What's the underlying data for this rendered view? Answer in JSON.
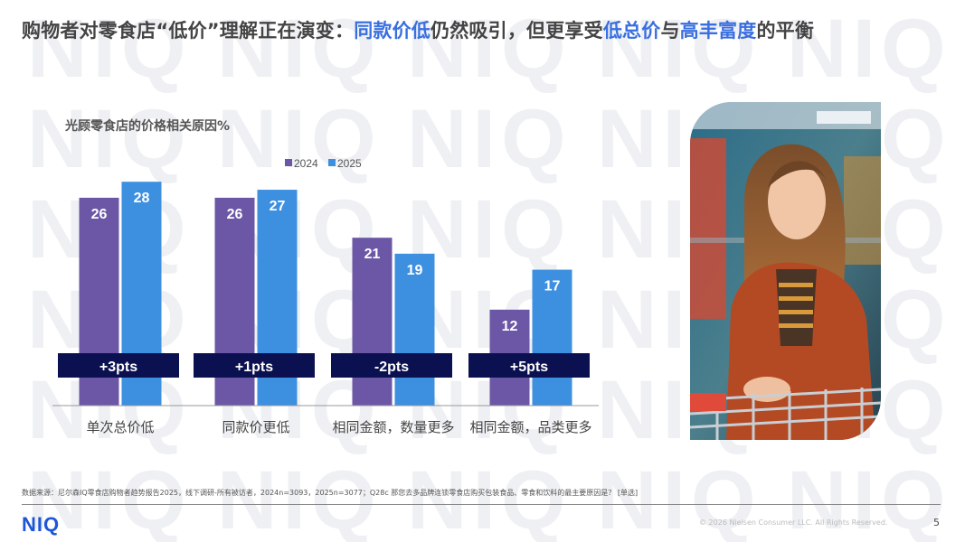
{
  "header": {
    "title_parts": [
      {
        "text": "购物者对零食店“低价”理解正在演变：",
        "hl": false
      },
      {
        "text": "同款价低",
        "hl": true
      },
      {
        "text": "仍然吸引，但更享受",
        "hl": false
      },
      {
        "text": "低总价",
        "hl": true
      },
      {
        "text": "与",
        "hl": false
      },
      {
        "text": "高丰富度",
        "hl": true
      },
      {
        "text": "的平衡",
        "hl": false
      }
    ]
  },
  "chart_data": {
    "type": "bar",
    "title": "光顾零食店的价格相关原因%",
    "categories": [
      "单次总价低",
      "同款价更低",
      "相同金额，数量更多",
      "相同金额，品类更多"
    ],
    "series": [
      {
        "name": "2024",
        "values": [
          26,
          26,
          21,
          12
        ],
        "color": "#6b57a5"
      },
      {
        "name": "2025",
        "values": [
          28,
          27,
          19,
          17
        ],
        "color": "#3d8fe0"
      }
    ],
    "changes": [
      "+3pts",
      "+1pts",
      "-2pts",
      "+5pts"
    ],
    "ylim": [
      0,
      30
    ],
    "legend_position": "top",
    "grid": false
  },
  "footer": {
    "source": "数据来源：尼尔森IQ零食店购物者趋势报告2025，线下调研-所有被访者，2024n=3093，2025n=3077；Q28c 那您去多品牌连锁零食店购买包装食品、零食和饮料的最主要原因是？ [单选]",
    "logo": "NIQ",
    "copyright": "© 2026 Nielsen Consumer LLC. All Rights Reserved.",
    "page_number": "5"
  },
  "colors": {
    "accent": "#3a6fe0",
    "band": "#0b1150",
    "logo": "#1e56d8"
  },
  "watermark_text": "NIQ"
}
